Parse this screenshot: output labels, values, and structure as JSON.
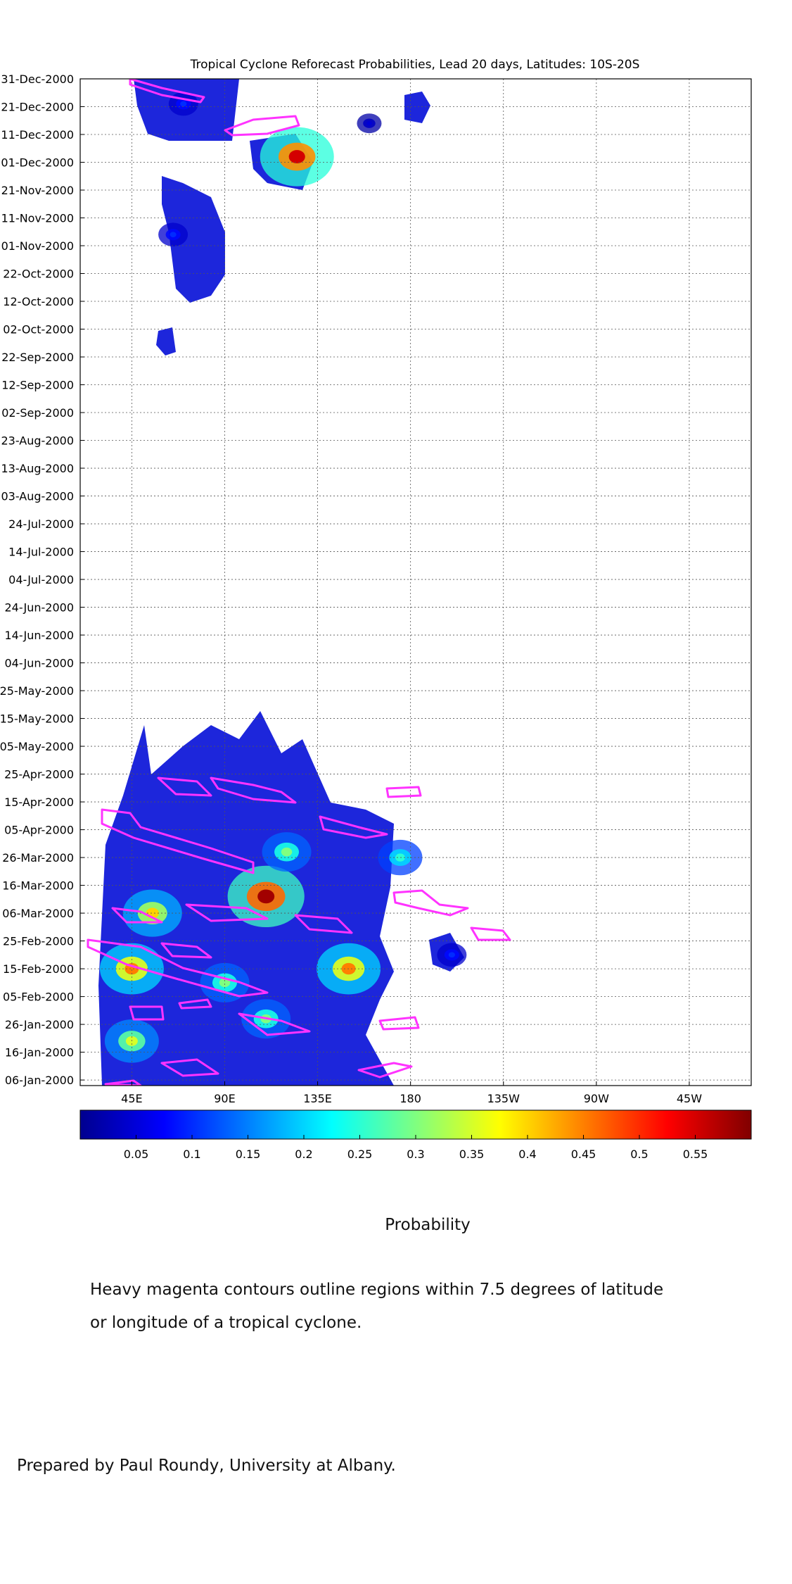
{
  "chart_data": {
    "type": "heatmap",
    "title": "Tropical Cyclone Reforecast Probabilities, Lead 20 days, Latitudes: 10S-20S",
    "x_ticks": [
      "45E",
      "90E",
      "135E",
      "180",
      "135W",
      "90W",
      "45W"
    ],
    "x_tick_values_deg_east": [
      45,
      90,
      135,
      180,
      225,
      270,
      315
    ],
    "x_range_deg_east": [
      20,
      345
    ],
    "y_ticks": [
      "31-Dec-2000",
      "21-Dec-2000",
      "11-Dec-2000",
      "01-Dec-2000",
      "21-Nov-2000",
      "11-Nov-2000",
      "01-Nov-2000",
      "22-Oct-2000",
      "12-Oct-2000",
      "02-Oct-2000",
      "22-Sep-2000",
      "12-Sep-2000",
      "02-Sep-2000",
      "23-Aug-2000",
      "13-Aug-2000",
      "03-Aug-2000",
      "24-Jul-2000",
      "14-Jul-2000",
      "04-Jul-2000",
      "24-Jun-2000",
      "14-Jun-2000",
      "04-Jun-2000",
      "25-May-2000",
      "15-May-2000",
      "05-May-2000",
      "25-Apr-2000",
      "15-Apr-2000",
      "05-Apr-2000",
      "26-Mar-2000",
      "16-Mar-2000",
      "06-Mar-2000",
      "25-Feb-2000",
      "15-Feb-2000",
      "05-Feb-2000",
      "26-Jan-2000",
      "16-Jan-2000",
      "06-Jan-2000"
    ],
    "y_range": [
      "04-Jan-2000",
      "31-Dec-2000"
    ],
    "y_direction": "time increases upward",
    "grid": true,
    "colorbar": {
      "position": "bottom",
      "label": "Probability",
      "ticks": [
        "0.05",
        "0.1",
        "0.15",
        "0.2",
        "0.25",
        "0.3",
        "0.35",
        "0.4",
        "0.45",
        "0.5",
        "0.55"
      ],
      "range": [
        0.0,
        0.6
      ],
      "colormap": "jet"
    },
    "probability_regions": [
      {
        "lon": 70,
        "date": "2000-12-22",
        "peak": 0.1
      },
      {
        "lon": 125,
        "date": "2000-12-03",
        "peak": 0.55
      },
      {
        "lon": 65,
        "date": "2000-11-05",
        "peak": 0.1
      },
      {
        "lon": 160,
        "date": "2000-12-15",
        "peak": 0.05
      },
      {
        "lon": 45,
        "date": "2000-02-15",
        "peak": 0.45
      },
      {
        "lon": 55,
        "date": "2000-03-06",
        "peak": 0.4
      },
      {
        "lon": 45,
        "date": "2000-01-20",
        "peak": 0.35
      },
      {
        "lon": 110,
        "date": "2000-03-12",
        "peak": 0.58
      },
      {
        "lon": 150,
        "date": "2000-02-15",
        "peak": 0.45
      },
      {
        "lon": 90,
        "date": "2000-02-10",
        "peak": 0.3
      },
      {
        "lon": 120,
        "date": "2000-03-28",
        "peak": 0.3
      },
      {
        "lon": 110,
        "date": "2000-01-28",
        "peak": 0.3
      },
      {
        "lon": 175,
        "date": "2000-03-26",
        "peak": 0.25
      },
      {
        "lon": 200,
        "date": "2000-02-20",
        "peak": 0.1
      }
    ],
    "contour_meaning": "Heavy magenta contours outline regions within 7.5 degrees of latitude or longitude of a tropical cyclone.",
    "contour_color": "#ff33ff"
  },
  "text": {
    "probability_label": "Probability",
    "caption_line1": "Heavy magenta contours outline regions within 7.5 degrees of latitude",
    "caption_line2": "or longitude of a tropical cyclone.",
    "credit": "Prepared by Paul Roundy, University at Albany."
  }
}
